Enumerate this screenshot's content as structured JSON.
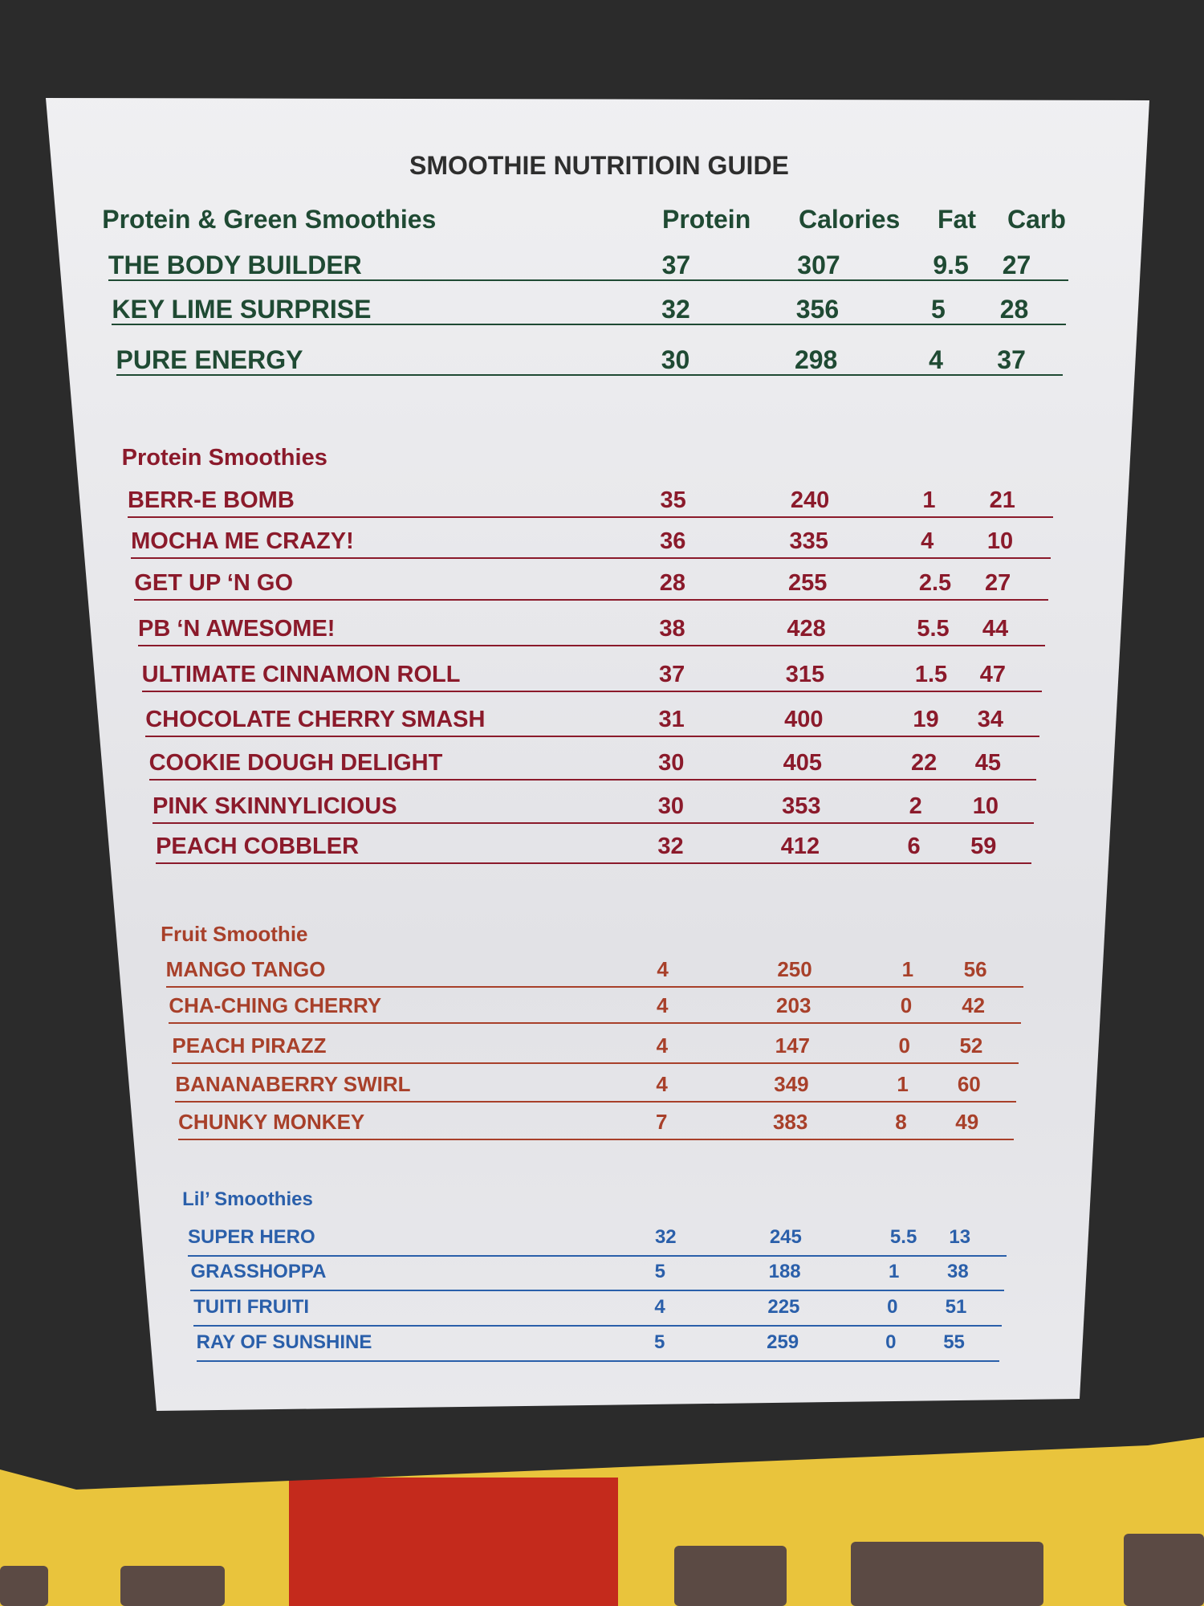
{
  "title": "SMOOTHIE NUTRITIOIN GUIDE",
  "columns": [
    "Protein",
    "Calories",
    "Fat",
    "Carb"
  ],
  "colors": {
    "green": "#1f4a33",
    "protein": "#8b1a2b",
    "fruit": "#a8402a",
    "lil": "#2a5faa",
    "wall": "#e9c43c",
    "frame": "#2b2b2b"
  },
  "sections": [
    {
      "heading": "Protein & Green Smoothies",
      "show_columns": true,
      "color": "#1f4a33",
      "rows": [
        {
          "name": "THE BODY BUILDER",
          "protein": "37",
          "calories": "307",
          "fat": "9.5",
          "carb": "27"
        },
        {
          "name": "KEY LIME SURPRISE",
          "protein": "32",
          "calories": "356",
          "fat": "5",
          "carb": "28"
        },
        {
          "name": "PURE ENERGY",
          "protein": "30",
          "calories": "298",
          "fat": "4",
          "carb": "37"
        }
      ]
    },
    {
      "heading": "Protein Smoothies",
      "color": "#8b1a2b",
      "rows": [
        {
          "name": "BERR-E BOMB",
          "protein": "35",
          "calories": "240",
          "fat": "1",
          "carb": "21"
        },
        {
          "name": "MOCHA ME CRAZY!",
          "protein": "36",
          "calories": "335",
          "fat": "4",
          "carb": "10"
        },
        {
          "name": "GET UP ‘N GO",
          "protein": "28",
          "calories": "255",
          "fat": "2.5",
          "carb": "27"
        },
        {
          "name": "PB  ‘N AWESOME!",
          "protein": "38",
          "calories": "428",
          "fat": "5.5",
          "carb": "44"
        },
        {
          "name": "ULTIMATE CINNAMON ROLL",
          "protein": "37",
          "calories": "315",
          "fat": "1.5",
          "carb": "47"
        },
        {
          "name": "CHOCOLATE CHERRY SMASH",
          "protein": "31",
          "calories": "400",
          "fat": "19",
          "carb": "34"
        },
        {
          "name": "COOKIE DOUGH DELIGHT",
          "protein": "30",
          "calories": "405",
          "fat": "22",
          "carb": "45"
        },
        {
          "name": "PINK SKINNYLICIOUS",
          "protein": "30",
          "calories": "353",
          "fat": "2",
          "carb": "10"
        },
        {
          "name": "PEACH COBBLER",
          "protein": "32",
          "calories": "412",
          "fat": "6",
          "carb": "59"
        }
      ]
    },
    {
      "heading": "Fruit Smoothie",
      "color": "#a8402a",
      "rows": [
        {
          "name": "MANGO TANGO",
          "protein": "4",
          "calories": "250",
          "fat": "1",
          "carb": "56"
        },
        {
          "name": "CHA-CHING CHERRY",
          "protein": "4",
          "calories": "203",
          "fat": "0",
          "carb": "42"
        },
        {
          "name": "PEACH PIRAZZ",
          "protein": "4",
          "calories": "147",
          "fat": "0",
          "carb": "52"
        },
        {
          "name": "BANANABERRY SWIRL",
          "protein": "4",
          "calories": "349",
          "fat": "1",
          "carb": "60"
        },
        {
          "name": "CHUNKY MONKEY",
          "protein": "7",
          "calories": "383",
          "fat": "8",
          "carb": "49"
        }
      ]
    },
    {
      "heading": "Lil’ Smoothies",
      "color": "#2a5faa",
      "rows": [
        {
          "name": "SUPER HERO",
          "protein": "32",
          "calories": "245",
          "fat": "5.5",
          "carb": "13"
        },
        {
          "name": "GRASSHOPPA",
          "protein": "5",
          "calories": "188",
          "fat": "1",
          "carb": "38"
        },
        {
          "name": "TUITI FRUITI",
          "protein": "4",
          "calories": "225",
          "fat": "0",
          "carb": "51"
        },
        {
          "name": "RAY OF SUNSHINE",
          "protein": "5",
          "calories": "259",
          "fat": "0",
          "carb": "55"
        }
      ]
    }
  ]
}
